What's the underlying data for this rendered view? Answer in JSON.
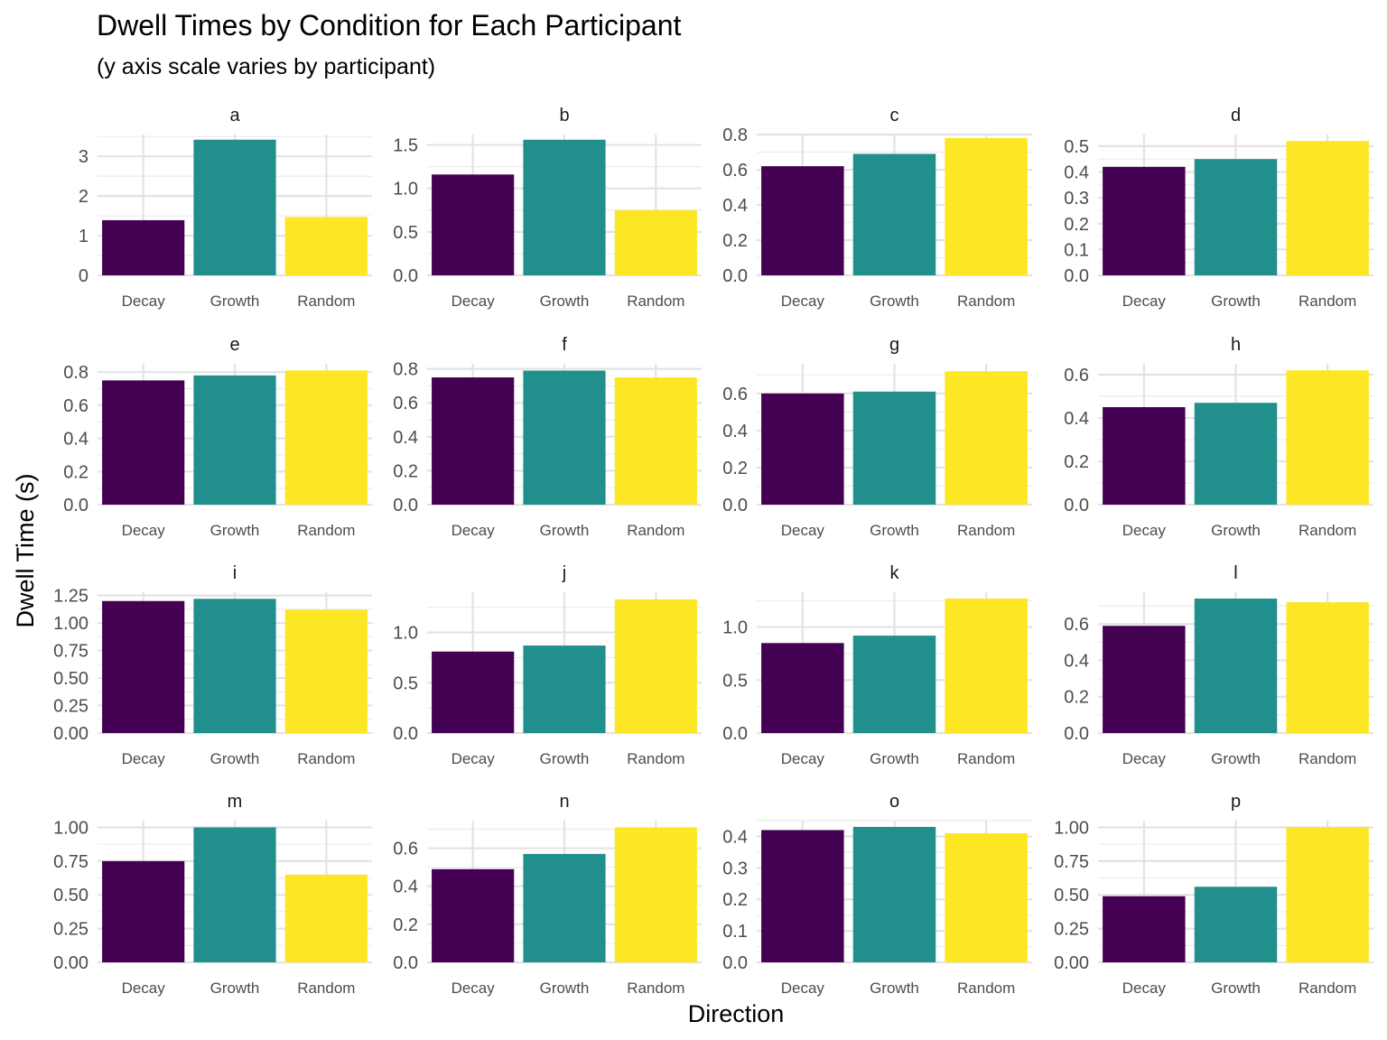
{
  "chart_data": {
    "type": "bar",
    "title": "Dwell Times by Condition for Each Participant",
    "subtitle": "(y axis scale varies by participant)",
    "xlabel": "Direction",
    "ylabel": "Dwell Time (s)",
    "categories": [
      "Decay",
      "Growth",
      "Random"
    ],
    "colors": [
      "#440154",
      "#21908c",
      "#fde725"
    ],
    "grid": true,
    "panels": [
      {
        "label": "a",
        "values": [
          1.39,
          3.42,
          1.47
        ],
        "ylim": [
          0,
          3.55
        ],
        "ticks": [
          0,
          1,
          2,
          3
        ],
        "tick_labels": [
          "0",
          "1",
          "2",
          "3"
        ]
      },
      {
        "label": "b",
        "values": [
          1.16,
          1.56,
          0.75
        ],
        "ylim": [
          0,
          1.62
        ],
        "ticks": [
          0,
          0.5,
          1.0,
          1.5
        ],
        "tick_labels": [
          "0.0",
          "0.5",
          "1.0",
          "1.5"
        ]
      },
      {
        "label": "c",
        "values": [
          0.62,
          0.69,
          0.78
        ],
        "ylim": [
          0,
          0.8
        ],
        "ticks": [
          0,
          0.2,
          0.4,
          0.6,
          0.8
        ],
        "tick_labels": [
          "0.0",
          "0.2",
          "0.4",
          "0.6",
          "0.8"
        ]
      },
      {
        "label": "d",
        "values": [
          0.42,
          0.45,
          0.52
        ],
        "ylim": [
          0,
          0.545
        ],
        "ticks": [
          0,
          0.1,
          0.2,
          0.3,
          0.4,
          0.5
        ],
        "tick_labels": [
          "0.0",
          "0.1",
          "0.2",
          "0.3",
          "0.4",
          "0.5"
        ]
      },
      {
        "label": "e",
        "values": [
          0.75,
          0.78,
          0.81
        ],
        "ylim": [
          0,
          0.85
        ],
        "ticks": [
          0,
          0.2,
          0.4,
          0.6,
          0.8
        ],
        "tick_labels": [
          "0.0",
          "0.2",
          "0.4",
          "0.6",
          "0.8"
        ]
      },
      {
        "label": "f",
        "values": [
          0.75,
          0.79,
          0.75
        ],
        "ylim": [
          0,
          0.83
        ],
        "ticks": [
          0,
          0.2,
          0.4,
          0.6,
          0.8
        ],
        "tick_labels": [
          "0.0",
          "0.2",
          "0.4",
          "0.6",
          "0.8"
        ]
      },
      {
        "label": "g",
        "values": [
          0.6,
          0.61,
          0.72
        ],
        "ylim": [
          0,
          0.76
        ],
        "ticks": [
          0,
          0.2,
          0.4,
          0.6
        ],
        "tick_labels": [
          "0.0",
          "0.2",
          "0.4",
          "0.6"
        ]
      },
      {
        "label": "h",
        "values": [
          0.45,
          0.47,
          0.62
        ],
        "ylim": [
          0,
          0.65
        ],
        "ticks": [
          0,
          0.2,
          0.4,
          0.6
        ],
        "tick_labels": [
          "0.0",
          "0.2",
          "0.4",
          "0.6"
        ]
      },
      {
        "label": "i",
        "values": [
          1.2,
          1.22,
          1.12
        ],
        "ylim": [
          0,
          1.28
        ],
        "ticks": [
          0,
          0.25,
          0.5,
          0.75,
          1.0,
          1.25
        ],
        "tick_labels": [
          "0.00",
          "0.25",
          "0.50",
          "0.75",
          "1.00",
          "1.25"
        ]
      },
      {
        "label": "j",
        "values": [
          0.81,
          0.87,
          1.33
        ],
        "ylim": [
          0,
          1.4
        ],
        "ticks": [
          0,
          0.5,
          1.0
        ],
        "tick_labels": [
          "0.0",
          "0.5",
          "1.0"
        ]
      },
      {
        "label": "k",
        "values": [
          0.85,
          0.92,
          1.27
        ],
        "ylim": [
          0,
          1.33
        ],
        "ticks": [
          0,
          0.5,
          1.0
        ],
        "tick_labels": [
          "0.0",
          "0.5",
          "1.0"
        ]
      },
      {
        "label": "l",
        "values": [
          0.59,
          0.74,
          0.72
        ],
        "ylim": [
          0,
          0.775
        ],
        "ticks": [
          0,
          0.2,
          0.4,
          0.6
        ],
        "tick_labels": [
          "0.0",
          "0.2",
          "0.4",
          "0.6"
        ]
      },
      {
        "label": "m",
        "values": [
          0.75,
          1.0,
          0.65
        ],
        "ylim": [
          0,
          1.05
        ],
        "ticks": [
          0,
          0.25,
          0.5,
          0.75,
          1.0
        ],
        "tick_labels": [
          "0.00",
          "0.25",
          "0.50",
          "0.75",
          "1.00"
        ]
      },
      {
        "label": "n",
        "values": [
          0.49,
          0.57,
          0.71
        ],
        "ylim": [
          0,
          0.745
        ],
        "ticks": [
          0,
          0.2,
          0.4,
          0.6
        ],
        "tick_labels": [
          "0.0",
          "0.2",
          "0.4",
          "0.6"
        ]
      },
      {
        "label": "o",
        "values": [
          0.42,
          0.43,
          0.41
        ],
        "ylim": [
          0,
          0.45
        ],
        "ticks": [
          0,
          0.1,
          0.2,
          0.3,
          0.4
        ],
        "tick_labels": [
          "0.0",
          "0.1",
          "0.2",
          "0.3",
          "0.4"
        ]
      },
      {
        "label": "p",
        "values": [
          0.49,
          0.56,
          1.0
        ],
        "ylim": [
          0,
          1.05
        ],
        "ticks": [
          0,
          0.25,
          0.5,
          0.75,
          1.0
        ],
        "tick_labels": [
          "0.00",
          "0.25",
          "0.50",
          "0.75",
          "1.00"
        ]
      }
    ]
  }
}
